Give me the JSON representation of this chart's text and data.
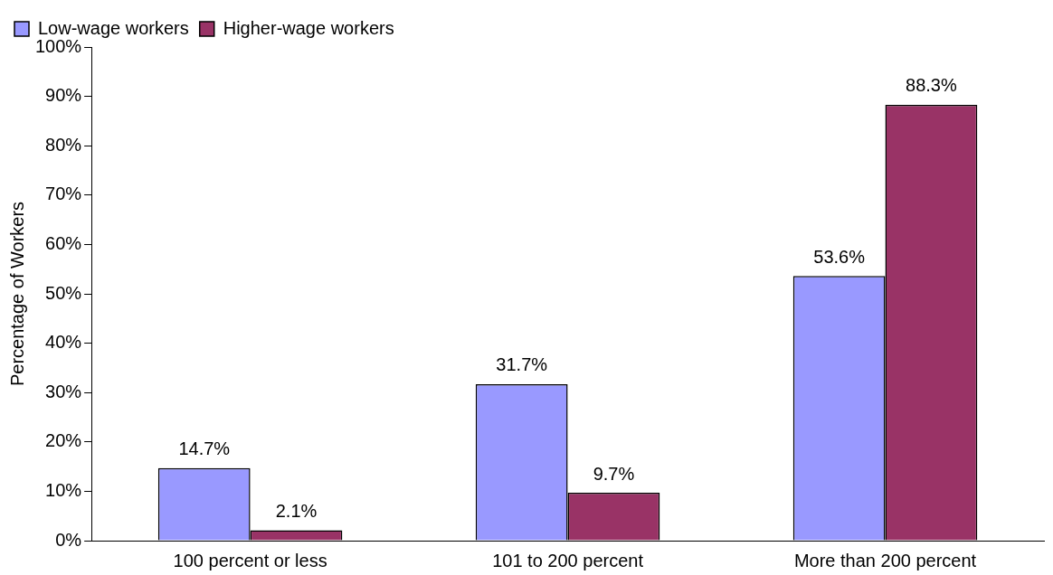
{
  "chart_data": {
    "type": "bar",
    "ylabel": "Percentage of Workers",
    "categories": [
      "100 percent or less",
      "101 to 200 percent",
      "More than 200 percent"
    ],
    "series": [
      {
        "name": "Low-wage workers",
        "color": "#9999ff",
        "values": [
          14.7,
          31.7,
          53.6
        ],
        "value_labels": [
          "14.7%",
          "31.7%",
          "53.6%"
        ]
      },
      {
        "name": "Higher-wage workers",
        "color": "#993366",
        "values": [
          2.1,
          9.7,
          88.3
        ],
        "value_labels": [
          "2.1%",
          "9.7%",
          "88.3%"
        ]
      }
    ],
    "ylim": [
      0,
      100
    ],
    "yticks": [
      {
        "value": 0,
        "label": "0%"
      },
      {
        "value": 10,
        "label": "10%"
      },
      {
        "value": 20,
        "label": "20%"
      },
      {
        "value": 30,
        "label": "30%"
      },
      {
        "value": 40,
        "label": "40%"
      },
      {
        "value": 50,
        "label": "50%"
      },
      {
        "value": 60,
        "label": "60%"
      },
      {
        "value": 70,
        "label": "70%"
      },
      {
        "value": 80,
        "label": "80%"
      },
      {
        "value": 90,
        "label": "90%"
      },
      {
        "value": 100,
        "label": "100%"
      }
    ],
    "grid": false,
    "legend": "top left"
  }
}
